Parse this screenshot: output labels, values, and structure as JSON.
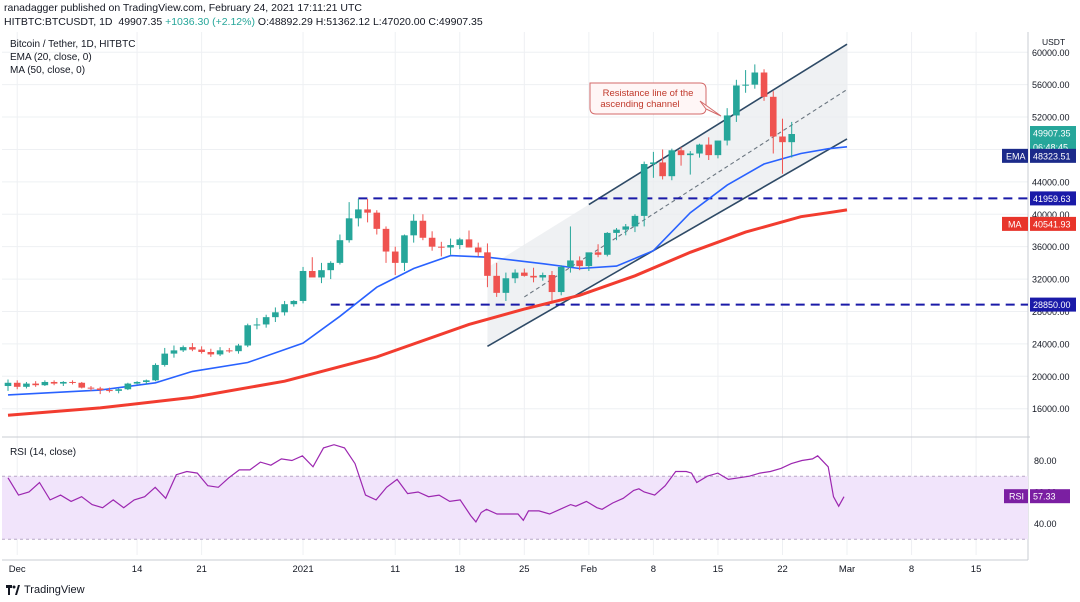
{
  "header": {
    "line1": "ranadagger published on TradingView.com, February 24, 2021 17:11:21 UTC",
    "symbol": "HITBTC:BTCUSDT, 1D",
    "price": "49907.35",
    "change": "+1036.30 (+2.12%)",
    "open": "O:48892.29",
    "high": "H:51362.12",
    "low": "L:47020.00",
    "close": "C:49907.35"
  },
  "legend": {
    "title": "Bitcoin / Tether, 1D, HITBTC",
    "ema": "EMA (20, close, 0)",
    "ma": "MA (50, close, 0)",
    "rsi": "RSI (14, close)"
  },
  "annotation": {
    "line1": "Resistance line of the",
    "line2": "ascending channel"
  },
  "footer": {
    "brand": "TradingView"
  },
  "colors": {
    "up": "#26a69a",
    "down": "#ef5350",
    "ema": "#2962ff",
    "ma": "#f23c2f",
    "rsi": "#9c27b0",
    "level": "#1a1aa8",
    "channel": "#2e4a66"
  },
  "chart_data": {
    "type": "candlestick",
    "title": "Bitcoin / Tether, 1D, HITBTC",
    "ylim": [
      13000,
      62500
    ],
    "y_ticks": [
      16000,
      20000,
      24000,
      28000,
      32000,
      36000,
      40000,
      44000,
      48000,
      52000,
      56000,
      60000
    ],
    "y_tick_labels": [
      "16000.00",
      "20000.00",
      "24000.00",
      "28000.00",
      "32000.00",
      "36000.00",
      "40000.00",
      "44000.00",
      "48000.00",
      "52000.00",
      "56000.00",
      "60000.00"
    ],
    "currency": "USDT",
    "x_start_date": "2020-11-30",
    "x_ticks": [
      {
        "date": "2020-12-01",
        "label": "Dec"
      },
      {
        "date": "2020-12-14",
        "label": "14"
      },
      {
        "date": "2020-12-21",
        "label": "21"
      },
      {
        "date": "2021-01-01",
        "label": "2021"
      },
      {
        "date": "2021-01-11",
        "label": "11"
      },
      {
        "date": "2021-01-18",
        "label": "18"
      },
      {
        "date": "2021-01-25",
        "label": "25"
      },
      {
        "date": "2021-02-01",
        "label": "Feb"
      },
      {
        "date": "2021-02-08",
        "label": "8"
      },
      {
        "date": "2021-02-15",
        "label": "15"
      },
      {
        "date": "2021-02-22",
        "label": "22"
      },
      {
        "date": "2021-03-01",
        "label": "Mar"
      },
      {
        "date": "2021-03-08",
        "label": "8"
      },
      {
        "date": "2021-03-15",
        "label": "15"
      }
    ],
    "candles": [
      [
        18800,
        19600,
        18200,
        19200
      ],
      [
        19200,
        19500,
        18400,
        18700
      ],
      [
        18700,
        19300,
        18500,
        19100
      ],
      [
        19100,
        19400,
        18700,
        18900
      ],
      [
        18900,
        19500,
        18800,
        19300
      ],
      [
        19300,
        19500,
        18900,
        19100
      ],
      [
        19100,
        19400,
        18800,
        19300
      ],
      [
        19300,
        19500,
        19000,
        19200
      ],
      [
        19200,
        19300,
        18500,
        18600
      ],
      [
        18600,
        18800,
        18200,
        18500
      ],
      [
        18500,
        18700,
        17800,
        18300
      ],
      [
        18300,
        18600,
        18000,
        18200
      ],
      [
        18200,
        18500,
        17900,
        18400
      ],
      [
        18400,
        19200,
        18300,
        19100
      ],
      [
        19100,
        19400,
        19000,
        19300
      ],
      [
        19300,
        19600,
        19000,
        19500
      ],
      [
        19500,
        21600,
        19400,
        21400
      ],
      [
        21400,
        23500,
        21200,
        22800
      ],
      [
        22800,
        23800,
        22300,
        23200
      ],
      [
        23200,
        23800,
        23000,
        23600
      ],
      [
        23600,
        24100,
        23100,
        23300
      ],
      [
        23300,
        23700,
        22800,
        23000
      ],
      [
        23000,
        23400,
        22400,
        22700
      ],
      [
        22700,
        23600,
        22500,
        23200
      ],
      [
        23200,
        23500,
        22900,
        23100
      ],
      [
        23100,
        24000,
        22800,
        23800
      ],
      [
        23800,
        26500,
        23600,
        26300
      ],
      [
        26300,
        27200,
        25800,
        26400
      ],
      [
        26400,
        27600,
        26000,
        27300
      ],
      [
        27300,
        28500,
        26700,
        27900
      ],
      [
        27900,
        29300,
        27500,
        28900
      ],
      [
        28900,
        29400,
        28600,
        29300
      ],
      [
        29300,
        33500,
        29000,
        33000
      ],
      [
        33000,
        34700,
        32500,
        32200
      ],
      [
        32200,
        34000,
        31500,
        33100
      ],
      [
        33100,
        34200,
        32000,
        34000
      ],
      [
        34000,
        37500,
        33800,
        36800
      ],
      [
        36800,
        41500,
        36500,
        39500
      ],
      [
        39500,
        41900,
        38500,
        40600
      ],
      [
        40600,
        41900,
        39000,
        40200
      ],
      [
        40200,
        40500,
        37500,
        38200
      ],
      [
        38200,
        38500,
        34000,
        35400
      ],
      [
        35400,
        36000,
        32500,
        34000
      ],
      [
        34000,
        37500,
        33000,
        37400
      ],
      [
        37400,
        40000,
        36500,
        39200
      ],
      [
        39200,
        40000,
        36800,
        37100
      ],
      [
        37100,
        37900,
        35500,
        36000
      ],
      [
        36000,
        36600,
        34800,
        35900
      ],
      [
        35900,
        37000,
        35000,
        36200
      ],
      [
        36200,
        37100,
        35700,
        36900
      ],
      [
        36900,
        38000,
        36000,
        35900
      ],
      [
        35900,
        36500,
        34800,
        35300
      ],
      [
        35300,
        36400,
        31000,
        32400
      ],
      [
        32400,
        34000,
        29800,
        30300
      ],
      [
        30300,
        32800,
        29300,
        32100
      ],
      [
        32100,
        33200,
        31500,
        32800
      ],
      [
        32800,
        33300,
        32300,
        32400
      ],
      [
        32400,
        33400,
        31600,
        32200
      ],
      [
        32200,
        32800,
        31800,
        32500
      ],
      [
        32500,
        33000,
        29300,
        30400
      ],
      [
        30400,
        33700,
        30000,
        33500
      ],
      [
        33500,
        38500,
        32800,
        34300
      ],
      [
        34300,
        34800,
        33100,
        33600
      ],
      [
        33600,
        35200,
        33000,
        35300
      ],
      [
        35300,
        36300,
        34700,
        35000
      ],
      [
        35000,
        37800,
        34800,
        37700
      ],
      [
        37700,
        38300,
        36800,
        38100
      ],
      [
        38100,
        38800,
        37400,
        38500
      ],
      [
        38500,
        40000,
        37800,
        39800
      ],
      [
        39800,
        46500,
        38500,
        46200
      ],
      [
        46200,
        47700,
        44500,
        46400
      ],
      [
        46400,
        48000,
        44300,
        44700
      ],
      [
        44700,
        48100,
        44200,
        47900
      ],
      [
        47900,
        48300,
        46000,
        47300
      ],
      [
        47300,
        47800,
        44900,
        47500
      ],
      [
        47500,
        48700,
        47000,
        48600
      ],
      [
        48600,
        49500,
        46700,
        47300
      ],
      [
        47300,
        49100,
        46900,
        49100
      ],
      [
        49100,
        53100,
        48500,
        52200
      ],
      [
        52200,
        56600,
        51400,
        55900
      ],
      [
        55900,
        57800,
        55000,
        56000
      ],
      [
        56000,
        58500,
        55500,
        57500
      ],
      [
        57500,
        57900,
        54000,
        54500
      ],
      [
        54500,
        55200,
        47500,
        49600
      ],
      [
        49600,
        51800,
        45000,
        48900
      ],
      [
        48900,
        51400,
        47000,
        49907
      ]
    ],
    "channel_upper": [
      {
        "i": 63,
        "p": 41200
      },
      {
        "i": 91,
        "p": 61000
      }
    ],
    "channel_lower": [
      {
        "i": 52,
        "p": 23700
      },
      {
        "i": 91,
        "p": 49300
      }
    ],
    "channel_mid": [
      {
        "i": 56,
        "p": 29800
      },
      {
        "i": 91,
        "p": 55400
      }
    ],
    "resistance_level": {
      "value": 41959.63,
      "label": "41959.63",
      "from": 38
    },
    "support_level": {
      "value": 28850.0,
      "label": "28850.00",
      "from": 35
    },
    "ema_value": {
      "value": 48323.51,
      "label": "48323.51",
      "name": "EMA"
    },
    "ma_value": {
      "value": 40541.93,
      "label": "40541.93",
      "name": "MA"
    },
    "price_label": {
      "value": 49907.35,
      "label": "49907.35",
      "timer": "06:48:45"
    },
    "ema_anchors": [
      [
        0,
        17700
      ],
      [
        10,
        18300
      ],
      [
        16,
        19200
      ],
      [
        20,
        20600
      ],
      [
        26,
        21700
      ],
      [
        32,
        24100
      ],
      [
        36,
        27400
      ],
      [
        40,
        31000
      ],
      [
        44,
        33300
      ],
      [
        48,
        34900
      ],
      [
        52,
        34700
      ],
      [
        58,
        33900
      ],
      [
        62,
        33300
      ],
      [
        66,
        33600
      ],
      [
        70,
        35500
      ],
      [
        74,
        40200
      ],
      [
        78,
        43600
      ],
      [
        82,
        46200
      ],
      [
        86,
        47500
      ],
      [
        89,
        48100
      ],
      [
        91,
        48323
      ]
    ],
    "ma_anchors": [
      [
        0,
        15200
      ],
      [
        10,
        16100
      ],
      [
        20,
        17400
      ],
      [
        30,
        19400
      ],
      [
        40,
        22400
      ],
      [
        50,
        26400
      ],
      [
        56,
        28300
      ],
      [
        62,
        30000
      ],
      [
        68,
        32400
      ],
      [
        74,
        35300
      ],
      [
        80,
        37800
      ],
      [
        86,
        39700
      ],
      [
        89,
        40200
      ],
      [
        91,
        40541
      ]
    ],
    "rsi": {
      "name": "RSI (14, close)",
      "ylim": [
        20,
        93
      ],
      "ticks": [
        40,
        60,
        80
      ],
      "tick_labels": [
        "40.00",
        "60.00",
        "80.00"
      ],
      "band": [
        30,
        70
      ],
      "last": "57.33",
      "anchors": [
        [
          0,
          69
        ],
        [
          2,
          58
        ],
        [
          4,
          60
        ],
        [
          6,
          66
        ],
        [
          8,
          55
        ],
        [
          10,
          58
        ],
        [
          12,
          54
        ],
        [
          14,
          57
        ],
        [
          16,
          52
        ],
        [
          18,
          50
        ],
        [
          20,
          55
        ],
        [
          22,
          50
        ],
        [
          24,
          55
        ],
        [
          26,
          57
        ],
        [
          28,
          63
        ],
        [
          30,
          56
        ],
        [
          32,
          71
        ],
        [
          34,
          73
        ],
        [
          36,
          72
        ],
        [
          38,
          64
        ],
        [
          40,
          63
        ],
        [
          42,
          69
        ],
        [
          44,
          74
        ],
        [
          46,
          74
        ],
        [
          48,
          79
        ],
        [
          50,
          77
        ],
        [
          52,
          81
        ],
        [
          54,
          80
        ],
        [
          56,
          83
        ],
        [
          58,
          76
        ],
        [
          60,
          88
        ],
        [
          62,
          90
        ],
        [
          64,
          88
        ],
        [
          66,
          78
        ],
        [
          68,
          58
        ],
        [
          70,
          55
        ],
        [
          72,
          63
        ],
        [
          74,
          68
        ],
        [
          76,
          59
        ],
        [
          78,
          60
        ],
        [
          80,
          57
        ],
        [
          82,
          58
        ],
        [
          84,
          54
        ],
        [
          86,
          55
        ],
        [
          88,
          45
        ],
        [
          89,
          41
        ],
        [
          90,
          47
        ],
        [
          91,
          49
        ],
        [
          93,
          46
        ],
        [
          95,
          46
        ],
        [
          97,
          46
        ],
        [
          98,
          42
        ],
        [
          99,
          48
        ],
        [
          101,
          48
        ],
        [
          103,
          46
        ],
        [
          105,
          49
        ],
        [
          107,
          52
        ],
        [
          108,
          51
        ],
        [
          110,
          54
        ],
        [
          112,
          50
        ],
        [
          113,
          49
        ],
        [
          115,
          53
        ],
        [
          117,
          56
        ],
        [
          119,
          61
        ],
        [
          120,
          62
        ],
        [
          121,
          60
        ],
        [
          123,
          58
        ],
        [
          125,
          64
        ],
        [
          127,
          73
        ],
        [
          129,
          73
        ],
        [
          130,
          72
        ],
        [
          131,
          66
        ],
        [
          133,
          70
        ],
        [
          135,
          72
        ],
        [
          137,
          68
        ],
        [
          139,
          69
        ],
        [
          141,
          70
        ],
        [
          143,
          72
        ],
        [
          145,
          73
        ],
        [
          147,
          75
        ],
        [
          149,
          78
        ],
        [
          151,
          80
        ],
        [
          153,
          81
        ],
        [
          154,
          83
        ],
        [
          156,
          76
        ],
        [
          157,
          57
        ],
        [
          158,
          51
        ],
        [
          159,
          57
        ]
      ]
    }
  }
}
